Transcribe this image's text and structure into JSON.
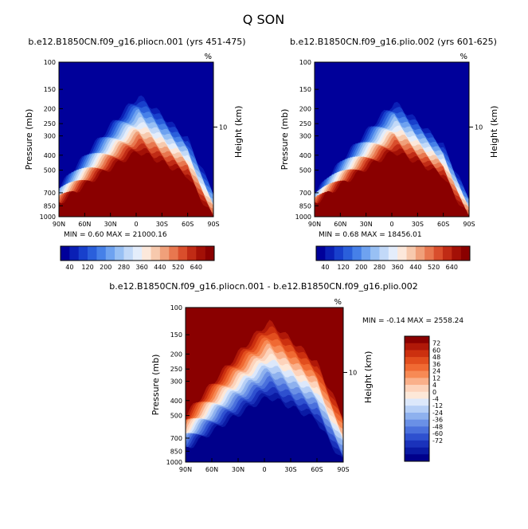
{
  "title": "Q SON",
  "chart_data": [
    {
      "type": "heatmap",
      "name": "panel-left",
      "title": "b.e12.B1850CN.f09_g16.pliocn.001 (yrs 451-475)",
      "units": "%",
      "ylabel": "Pressure (mb)",
      "ylabel_right": "Height (km)",
      "ytick_labels": [
        "100",
        "150",
        "200",
        "250",
        "300",
        "400",
        "500",
        "700",
        "850",
        "1000"
      ],
      "ytick_values": [
        100,
        150,
        200,
        250,
        300,
        400,
        500,
        700,
        850,
        1000
      ],
      "right_tick_labels": [
        "10"
      ],
      "xtick_labels": [
        "90N",
        "60N",
        "30N",
        "0",
        "30S",
        "60S",
        "90S"
      ],
      "min_label": "MIN =",
      "min_value": "0.60",
      "max_label": "MAX =",
      "max_value": "21000.16",
      "colorbar_labels": [
        "40",
        "120",
        "200",
        "280",
        "360",
        "440",
        "520",
        "640"
      ],
      "level_colors": [
        "#00009a",
        "#0a1fb5",
        "#1840cc",
        "#2a5fdb",
        "#4680e8",
        "#6ea2f0",
        "#98c0f4",
        "#c2d9f8",
        "#e4edfb",
        "#fce8db",
        "#f7c9ad",
        "#f0a07a",
        "#e8774f",
        "#d94e2c",
        "#c02b15",
        "#a31006",
        "#8a0000"
      ],
      "ridge_peak_lat": -3,
      "ridge_top_p": 158
    },
    {
      "type": "heatmap",
      "name": "panel-right",
      "title": "b.e12.B1850CN.f09_g16.plio.002 (yrs 601-625)",
      "units": "%",
      "ylabel": "Pressure (mb)",
      "ylabel_right": "Height (km)",
      "ytick_labels": [
        "100",
        "150",
        "200",
        "250",
        "300",
        "400",
        "500",
        "700",
        "850",
        "1000"
      ],
      "ytick_values": [
        100,
        150,
        200,
        250,
        300,
        400,
        500,
        700,
        850,
        1000
      ],
      "right_tick_labels": [
        "10"
      ],
      "xtick_labels": [
        "90N",
        "60N",
        "30N",
        "0",
        "30S",
        "60S",
        "90S"
      ],
      "min_label": "MIN =",
      "min_value": "0.68",
      "max_label": "MAX =",
      "max_value": "18456.01",
      "colorbar_labels": [
        "40",
        "120",
        "200",
        "280",
        "360",
        "440",
        "520",
        "640"
      ],
      "level_colors": [
        "#00009a",
        "#0a1fb5",
        "#1840cc",
        "#2a5fdb",
        "#4680e8",
        "#6ea2f0",
        "#98c0f4",
        "#c2d9f8",
        "#e4edfb",
        "#fce8db",
        "#f7c9ad",
        "#f0a07a",
        "#e8774f",
        "#d94e2c",
        "#c02b15",
        "#a31006",
        "#8a0000"
      ],
      "ridge_peak_lat": -3,
      "ridge_top_p": 175
    },
    {
      "type": "heatmap",
      "name": "panel-diff",
      "title": "b.e12.B1850CN.f09_g16.pliocn.001 - b.e12.B1850CN.f09_g16.plio.002",
      "units": "%",
      "ylabel": "Pressure (mb)",
      "ylabel_right": "Height (km)",
      "ytick_labels": [
        "100",
        "150",
        "200",
        "250",
        "300",
        "400",
        "500",
        "700",
        "850",
        "1000"
      ],
      "ytick_values": [
        100,
        150,
        200,
        250,
        300,
        400,
        500,
        700,
        850,
        1000
      ],
      "right_tick_labels": [
        "10"
      ],
      "xtick_labels": [
        "90N",
        "60N",
        "30N",
        "0",
        "30S",
        "60S",
        "90S"
      ],
      "min_label": "MIN =",
      "min_value": "-0.14",
      "max_label": "MAX =",
      "max_value": "2558.24",
      "colorbar_labels": [
        "72",
        "60",
        "48",
        "36",
        "24",
        "12",
        "4",
        "0",
        "-4",
        "-12",
        "-24",
        "-36",
        "-48",
        "-60",
        "-72"
      ],
      "level_colors": [
        "#8a0000",
        "#b01808",
        "#cc300f",
        "#e24e1e",
        "#f06a33",
        "#f78a55",
        "#fab08a",
        "#fdd3bb",
        "#fde8d8",
        "#dce8fb",
        "#b6cff6",
        "#8eb1ee",
        "#6a90e6",
        "#4a70dc",
        "#2e50cf",
        "#1a32bb",
        "#0a1aa4",
        "#00008b"
      ],
      "ridge_peak_lat": -5,
      "ridge_top_p": 116
    }
  ]
}
